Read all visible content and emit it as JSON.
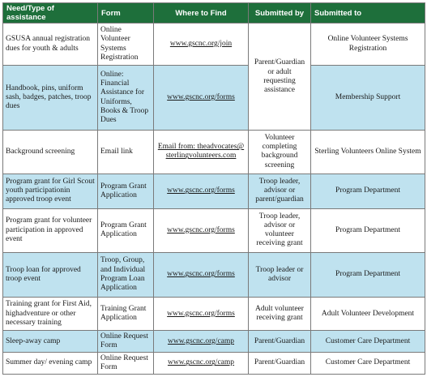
{
  "table": {
    "headers": [
      "Need/Type of assistance",
      "Form",
      "Where to Find",
      "Submitted by",
      "Submitted to"
    ],
    "rows": [
      {
        "need": "GSUSA annual registration dues for youth & adults",
        "form": "Online Volunteer Systems Registration",
        "where": "www.gscnc.org/join",
        "submitted_to": "Online Volunteer Systems Registration"
      },
      {
        "need": "Handbook, pins, uniform sash, badges, patches, troop dues",
        "form": "Online: Financial Assistance for Uniforms, Books & Troop Dues",
        "where": "www.gscnc.org/forms",
        "submitted_to": "Membership Support"
      },
      {
        "need": "Background screening",
        "form": "Email link",
        "where": "Email from: theadvocates@ sterlingvolunteers.com",
        "submitted_by": "Volunteer completing background screening",
        "submitted_to": "Sterling Volunteers Online System"
      },
      {
        "need": "Program grant for Girl Scout youth participationin approved troop event",
        "form": "Program Grant Application",
        "where": "www.gscnc.org/forms",
        "submitted_by": "Troop leader, advisor or parent/guardian",
        "submitted_to": "Program Department"
      },
      {
        "need": "Program grant for volunteer participation in approved event",
        "form": "Program Grant Application",
        "where": "www.gscnc.org/forms",
        "submitted_by": "Troop leader, advisor or volunteer receiving grant",
        "submitted_to": "Program Department"
      },
      {
        "need": "Troop loan for approved troop event",
        "form": "Troop, Group, and Individual Program Loan Application",
        "where": "www.gscnc.org/forms",
        "submitted_by": "Troop leader or advisor",
        "submitted_to": "Program Department"
      },
      {
        "need": "Training grant for First Aid, highadventure or other necessary training",
        "form": "Training Grant Application",
        "where": "www.gscnc.org/forms",
        "submitted_by": "Adult volunteer receiving grant",
        "submitted_to": "Adult Volunteer Development"
      },
      {
        "need": "Sleep-away camp",
        "form": "Online Request Form",
        "where": "www.gscnc.org/camp",
        "submitted_by": "Parent/Guardian",
        "submitted_to": "Customer Care Department"
      },
      {
        "need": "Summer day/ evening camp",
        "form": "Online Request Form",
        "where": "www.gscnc.org/camp",
        "submitted_by": "Parent/Guardian",
        "submitted_to": "Customer Care Department"
      }
    ],
    "merged_submitted_by": "Parent/Guardian or adult requesting assistance"
  },
  "colors": {
    "header_bg": "#1e6f3b",
    "shaded_row": "#bfe2ef"
  }
}
